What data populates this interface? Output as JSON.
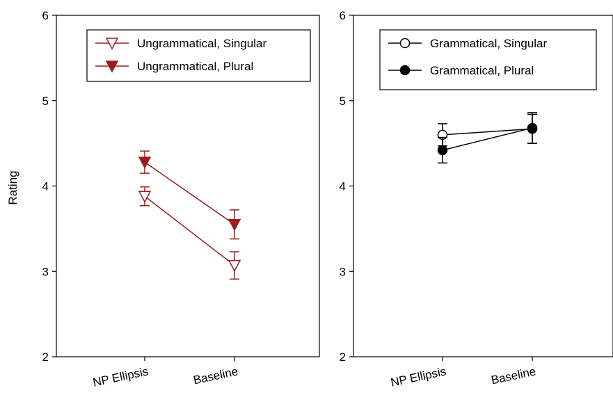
{
  "chart_data": [
    {
      "type": "line",
      "categories": [
        "NP Ellipsis",
        "Baseline"
      ],
      "ylabel": "Rating",
      "ylim": [
        2,
        6
      ],
      "yticks": [
        2,
        3,
        4,
        5,
        6
      ],
      "grid": false,
      "legend_position": "top-right",
      "series": [
        {
          "name": "Ungrammatical, Singular",
          "values": [
            3.88,
            3.07
          ],
          "errors": [
            0.11,
            0.16
          ],
          "color": "#9b1c1c",
          "marker": "triangle-down-open"
        },
        {
          "name": "Ungrammatical, Plural",
          "values": [
            4.28,
            3.55
          ],
          "errors": [
            0.13,
            0.17
          ],
          "color": "#9b1c1c",
          "marker": "triangle-down-filled"
        }
      ]
    },
    {
      "type": "line",
      "categories": [
        "NP Ellipsis",
        "Baseline"
      ],
      "ylabel": "",
      "ylim": [
        2,
        6
      ],
      "yticks": [
        2,
        3,
        4,
        5,
        6
      ],
      "grid": false,
      "legend_position": "top-right",
      "series": [
        {
          "name": "Grammatical, Singular",
          "values": [
            4.6,
            4.67
          ],
          "errors": [
            0.13,
            0.17
          ],
          "color": "#000000",
          "marker": "circle-open"
        },
        {
          "name": "Grammatical, Plural",
          "values": [
            4.42,
            4.68
          ],
          "errors": [
            0.15,
            0.18
          ],
          "color": "#000000",
          "marker": "circle-filled"
        }
      ]
    }
  ]
}
